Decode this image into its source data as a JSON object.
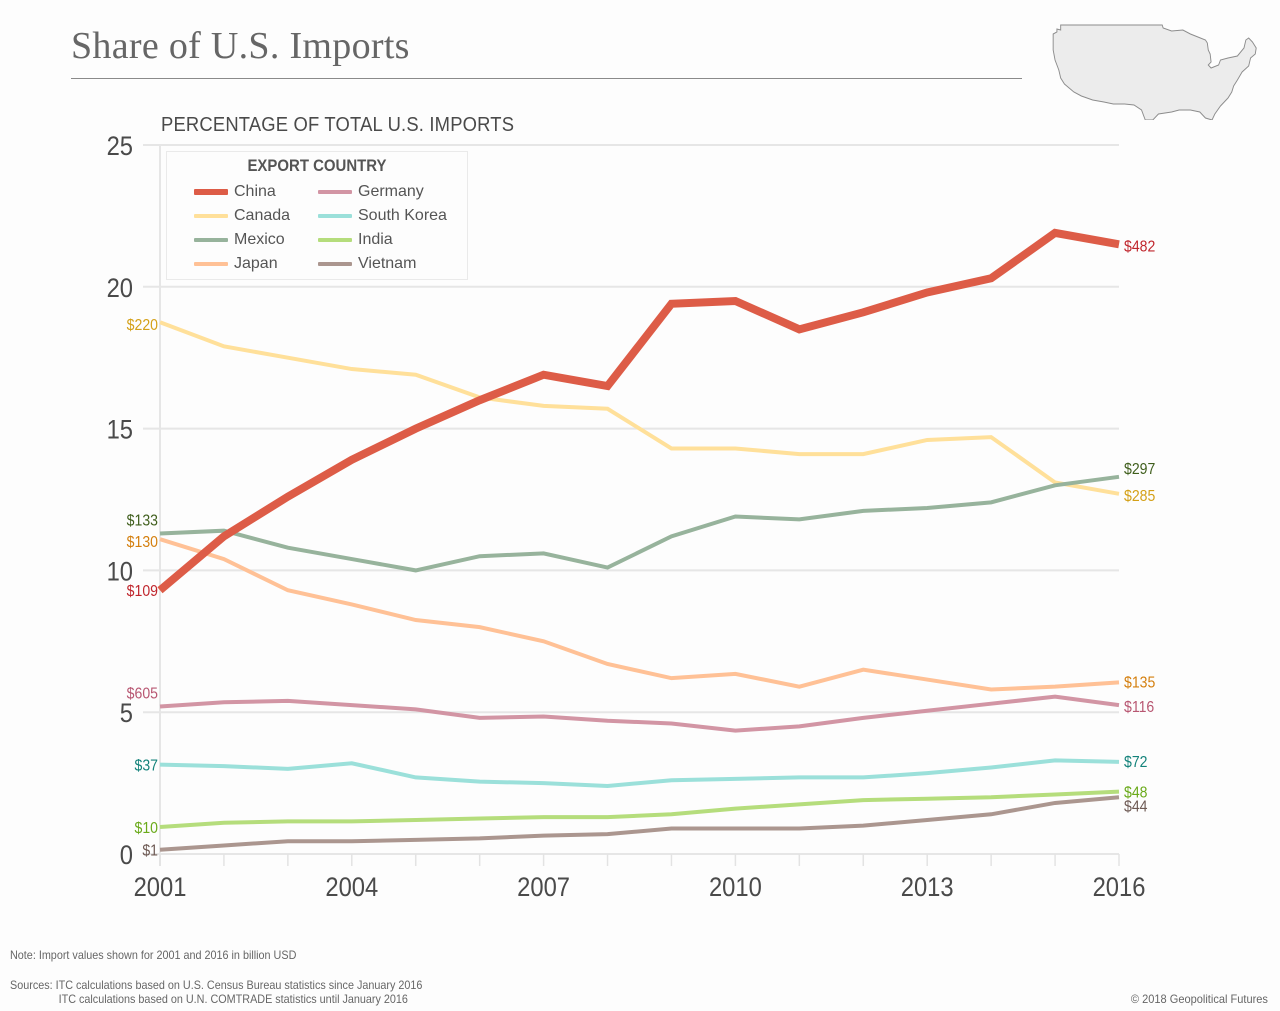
{
  "header": {
    "title": "Share of U.S. Imports",
    "map_icon": "us-map-silhouette"
  },
  "chart_data": {
    "type": "line",
    "title": "PERCENTAGE OF TOTAL U.S. IMPORTS",
    "xlabel": "",
    "ylabel": "",
    "x": [
      2001,
      2002,
      2003,
      2004,
      2005,
      2006,
      2007,
      2008,
      2009,
      2010,
      2011,
      2012,
      2013,
      2014,
      2015,
      2016
    ],
    "x_tick_labels": [
      "2001",
      "2004",
      "2007",
      "2010",
      "2013",
      "2016"
    ],
    "y_tick_labels": [
      "0",
      "5",
      "10",
      "15",
      "20",
      "25"
    ],
    "ylim": [
      0,
      25
    ],
    "xlim": [
      2001,
      2016
    ],
    "grid": true,
    "legend": {
      "title": "EXPORT COUNTRY",
      "placement": "top-left"
    },
    "series": [
      {
        "name": "China",
        "color": "#dd5c47",
        "label_color": "#c0262d",
        "thick": true,
        "values": [
          9.3,
          11.2,
          12.6,
          13.9,
          15.0,
          16.0,
          16.9,
          16.5,
          19.4,
          19.5,
          18.5,
          19.1,
          19.8,
          20.3,
          21.9,
          21.5
        ],
        "start_label": "$109",
        "end_label": "$482"
      },
      {
        "name": "Canada",
        "color": "#ffe09a",
        "label_color": "#d4a017",
        "values": [
          18.75,
          17.9,
          17.5,
          17.1,
          16.9,
          16.1,
          15.8,
          15.7,
          14.3,
          14.3,
          14.1,
          14.1,
          14.6,
          14.7,
          13.1,
          12.7
        ],
        "start_label": "$220",
        "end_label": "$285"
      },
      {
        "name": "Mexico",
        "color": "#97b39c",
        "label_color": "#3f5e1c",
        "values": [
          11.3,
          11.4,
          10.8,
          10.4,
          10.0,
          10.5,
          10.6,
          10.1,
          11.2,
          11.9,
          11.8,
          12.1,
          12.2,
          12.4,
          13.0,
          13.3
        ],
        "start_label": "$133",
        "end_label": "$297"
      },
      {
        "name": "Japan",
        "color": "#ffc196",
        "label_color": "#d47f0e",
        "values": [
          11.1,
          10.4,
          9.3,
          8.8,
          8.25,
          8.0,
          7.5,
          6.7,
          6.2,
          6.35,
          5.9,
          6.5,
          6.15,
          5.8,
          5.9,
          6.05
        ],
        "start_label": "$130",
        "end_label": "$135"
      },
      {
        "name": "Germany",
        "color": "#d295a4",
        "label_color": "#b85772",
        "values": [
          5.2,
          5.35,
          5.4,
          5.25,
          5.1,
          4.8,
          4.85,
          4.7,
          4.6,
          4.35,
          4.5,
          4.8,
          5.05,
          5.3,
          5.55,
          5.25
        ],
        "start_label": "$605",
        "end_label": "$116"
      },
      {
        "name": "South Korea",
        "color": "#9be0da",
        "label_color": "#13827a",
        "values": [
          3.15,
          3.1,
          3.0,
          3.2,
          2.7,
          2.55,
          2.5,
          2.4,
          2.6,
          2.65,
          2.7,
          2.7,
          2.85,
          3.05,
          3.3,
          3.25
        ],
        "start_label": "$37",
        "end_label": "$72"
      },
      {
        "name": "India",
        "color": "#b5dd7c",
        "label_color": "#6aaa1a",
        "values": [
          0.95,
          1.1,
          1.15,
          1.15,
          1.2,
          1.25,
          1.3,
          1.3,
          1.4,
          1.6,
          1.75,
          1.9,
          1.95,
          2.0,
          2.1,
          2.2
        ],
        "start_label": "$10",
        "end_label": "$48"
      },
      {
        "name": "Vietnam",
        "color": "#ab968f",
        "label_color": "#6e5a54",
        "values": [
          0.15,
          0.3,
          0.45,
          0.45,
          0.5,
          0.55,
          0.65,
          0.7,
          0.9,
          0.9,
          0.9,
          1.0,
          1.2,
          1.4,
          1.8,
          2.0
        ],
        "start_label": "$1",
        "end_label": "$44"
      }
    ]
  },
  "footer": {
    "note": "Note: Import values shown for 2001 and 2016 in billion USD",
    "sources_line1": "Sources: ITC calculations based on U.S. Census Bureau statistics since January 2016",
    "sources_line2": "ITC calculations based on U.N. COMTRADE statistics until January 2016",
    "copyright": "© 2018 Geopolitical Futures"
  }
}
